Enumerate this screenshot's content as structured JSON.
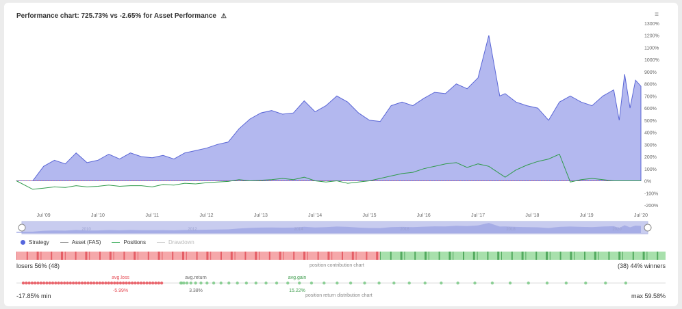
{
  "title": "Performance chart: 725.73% vs -2.65% for Asset Performance",
  "warn_icon": "warning-icon",
  "menu_icon": "menu-icon",
  "chart_data": {
    "type": "area",
    "x_ticks": [
      "Jul '09",
      "Jul '10",
      "Jul '11",
      "Jul '12",
      "Jul '13",
      "Jul '14",
      "Jul '15",
      "Jul '16",
      "Jul '17",
      "Jul '18",
      "Jul '19",
      "Jul '20"
    ],
    "y_ticks": [
      "1300%",
      "1200%",
      "1100%",
      "1000%",
      "900%",
      "800%",
      "700%",
      "600%",
      "500%",
      "400%",
      "300%",
      "200%",
      "100%",
      "0%",
      "-100%",
      "-200%"
    ],
    "ylim": [
      -200,
      1300
    ],
    "xlim": [
      2009.0,
      2020.5
    ],
    "series": [
      {
        "name": "Strategy",
        "color": "#aab0ee",
        "x": [
          2009.0,
          2009.3,
          2009.5,
          2009.7,
          2009.9,
          2010.1,
          2010.3,
          2010.5,
          2010.7,
          2010.9,
          2011.1,
          2011.3,
          2011.5,
          2011.7,
          2011.9,
          2012.1,
          2012.3,
          2012.5,
          2012.7,
          2012.9,
          2013.1,
          2013.3,
          2013.5,
          2013.7,
          2013.9,
          2014.1,
          2014.3,
          2014.5,
          2014.7,
          2014.9,
          2015.1,
          2015.3,
          2015.5,
          2015.7,
          2015.9,
          2016.1,
          2016.3,
          2016.5,
          2016.7,
          2016.9,
          2017.1,
          2017.3,
          2017.5,
          2017.7,
          2017.9,
          2018.0,
          2018.2,
          2018.4,
          2018.6,
          2018.8,
          2019.0,
          2019.2,
          2019.4,
          2019.6,
          2019.8,
          2020.0,
          2020.1,
          2020.2,
          2020.3,
          2020.4,
          2020.5
        ],
        "values": [
          0,
          0,
          120,
          170,
          140,
          230,
          150,
          170,
          220,
          180,
          230,
          200,
          190,
          210,
          180,
          230,
          250,
          270,
          300,
          320,
          430,
          510,
          560,
          580,
          550,
          560,
          660,
          570,
          620,
          700,
          650,
          560,
          500,
          490,
          620,
          650,
          620,
          680,
          730,
          720,
          800,
          760,
          850,
          1200,
          700,
          720,
          650,
          620,
          600,
          500,
          650,
          700,
          650,
          620,
          700,
          750,
          500,
          880,
          600,
          830,
          780
        ]
      },
      {
        "name": "Asset (FAS)",
        "color": "#888888",
        "values": [
          0,
          -70,
          -60,
          -50,
          -55,
          -40,
          -50,
          -45,
          -35,
          -45,
          -40,
          -40,
          -50,
          -30,
          -35,
          -20,
          -25,
          -15,
          -10,
          -5,
          10,
          0,
          5,
          10,
          20,
          10,
          30,
          0,
          -10,
          0,
          -20,
          -10,
          0,
          20,
          40,
          60,
          70,
          100,
          120,
          140,
          150,
          110,
          140,
          120,
          60,
          30,
          90,
          130,
          160,
          180,
          220,
          -10,
          10,
          20,
          10,
          0,
          0,
          0,
          0,
          0,
          0
        ]
      }
    ],
    "legend": [
      "Strategy",
      "Asset (FAS)",
      "Positions",
      "Drawdown"
    ],
    "grid": false,
    "legend_position": "bottom-left"
  },
  "navigator": {
    "ticks": [
      "2010",
      "2012",
      "2014",
      "2016",
      "2018",
      "2020"
    ]
  },
  "contribution": {
    "losers_label": "losers 56% (48)",
    "winners_label": "(38) 44% winners",
    "center_label": "position contribution chart",
    "loser_ratio": 0.56
  },
  "distribution": {
    "min_label": "-17.85% min",
    "max_label": "max 59.58%",
    "center_label": "position return distribution chart",
    "avg_loss_label": "avg.loss",
    "avg_loss_value": "-5.99%",
    "avg_return_label": "avg.return",
    "avg_return_value": "3.38%",
    "avg_gain_label": "avg.gain",
    "avg_gain_value": "15.22%"
  }
}
